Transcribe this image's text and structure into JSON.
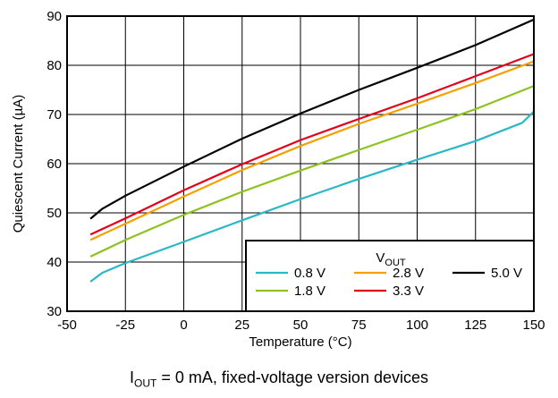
{
  "chart_data": {
    "type": "line",
    "title": "",
    "xlabel": "Temperature (°C)",
    "ylabel": "Quiescent Current (µA)",
    "xlim": [
      -50,
      150
    ],
    "ylim": [
      30,
      90
    ],
    "xticks": [
      -50,
      -25,
      0,
      25,
      50,
      75,
      100,
      125,
      150
    ],
    "yticks": [
      30,
      40,
      50,
      60,
      70,
      80,
      90
    ],
    "grid": true,
    "legend": {
      "title_main": "V",
      "title_sub": "OUT",
      "placement": "bottom-right"
    },
    "series": [
      {
        "name": "0.8 V",
        "color": "#29b8c6",
        "x": [
          -40,
          -35,
          -25,
          0,
          25,
          50,
          75,
          100,
          125,
          145,
          150
        ],
        "y": [
          36,
          37.8,
          39.8,
          44.1,
          48.5,
          52.8,
          56.9,
          60.8,
          64.6,
          68.3,
          70.6
        ]
      },
      {
        "name": "2.8 V",
        "color": "#f5a000",
        "x": [
          -40,
          -25,
          0,
          25,
          50,
          75,
          100,
          125,
          150
        ],
        "y": [
          44.5,
          47.8,
          53.3,
          58.7,
          63.6,
          68.1,
          72.2,
          76.4,
          80.8
        ]
      },
      {
        "name": "5.0 V",
        "color": "#000000",
        "x": [
          -40,
          -35,
          -25,
          0,
          25,
          50,
          75,
          100,
          125,
          150
        ],
        "y": [
          48.8,
          50.8,
          53.5,
          59.4,
          65.1,
          70.2,
          75.0,
          79.5,
          84.1,
          89.3
        ]
      },
      {
        "name": "1.8 V",
        "color": "#8dc21f",
        "x": [
          -40,
          -25,
          0,
          25,
          50,
          75,
          100,
          125,
          150
        ],
        "y": [
          41.1,
          44.5,
          49.6,
          54.3,
          58.6,
          62.8,
          66.9,
          71.1,
          75.8
        ]
      },
      {
        "name": "3.3 V",
        "color": "#e3001b",
        "x": [
          -40,
          -25,
          0,
          25,
          50,
          75,
          100,
          125,
          150
        ],
        "y": [
          45.6,
          48.9,
          54.6,
          59.9,
          64.8,
          69.1,
          73.3,
          77.8,
          82.3
        ]
      }
    ]
  },
  "caption": {
    "prefix": "I",
    "sub": "OUT",
    "text": " = 0 mA, fixed-voltage version devices"
  }
}
